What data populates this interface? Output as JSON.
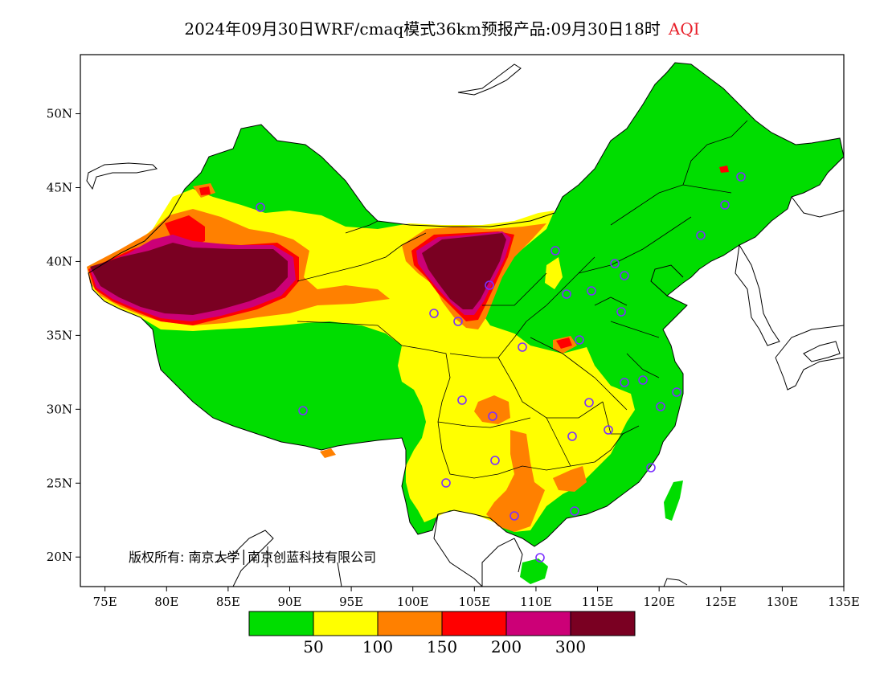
{
  "title": {
    "main": "2024年09月30日WRF/cmaq模式36km预报产品:09月30日18时",
    "variable": "AQI",
    "variable_color": "#e8202a"
  },
  "map": {
    "lon_range": [
      73,
      135
    ],
    "lat_range": [
      18,
      54
    ],
    "x_ticks": [
      "75E",
      "80E",
      "85E",
      "90E",
      "95E",
      "100E",
      "105E",
      "110E",
      "115E",
      "120E",
      "125E",
      "130E",
      "135E"
    ],
    "y_ticks": [
      "50N",
      "45N",
      "40N",
      "35N",
      "30N",
      "25N",
      "20N"
    ]
  },
  "legend": {
    "colors": [
      "#00dd00",
      "#ffff00",
      "#ff8000",
      "#ff0000",
      "#cc0077",
      "#7a0022"
    ],
    "labels": [
      "50",
      "100",
      "150",
      "200",
      "300"
    ]
  },
  "copyright": "版权所有: 南京大学│南京创蓝科技有限公司"
}
